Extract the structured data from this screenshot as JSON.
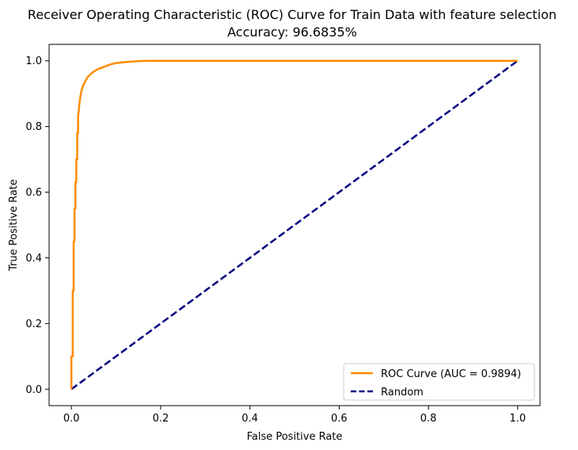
{
  "chart_data": {
    "type": "line",
    "title": "Receiver Operating Characteristic (ROC) Curve for Train Data with feature selection",
    "subtitle": "Accuracy: 96.6835%",
    "xlabel": "False Positive Rate",
    "ylabel": "True Positive Rate",
    "xlim": [
      -0.05,
      1.05
    ],
    "ylim": [
      -0.05,
      1.05
    ],
    "xticks": [
      "0.0",
      "0.2",
      "0.4",
      "0.6",
      "0.8",
      "1.0"
    ],
    "yticks": [
      "0.0",
      "0.2",
      "0.4",
      "0.6",
      "0.8",
      "1.0"
    ],
    "grid": false,
    "legend_position": "bottom-right",
    "series": [
      {
        "name": "ROC Curve (AUC = 0.9894)",
        "color": "#ff8c00",
        "style": "solid",
        "x": [
          0.0,
          0.0,
          0.003,
          0.003,
          0.005,
          0.005,
          0.007,
          0.007,
          0.009,
          0.009,
          0.011,
          0.011,
          0.013,
          0.013,
          0.015,
          0.015,
          0.018,
          0.02,
          0.022,
          0.025,
          0.028,
          0.032,
          0.036,
          0.04,
          0.045,
          0.05,
          0.06,
          0.07,
          0.08,
          0.09,
          0.1,
          0.12,
          0.14,
          0.17,
          0.2,
          0.5,
          1.0
        ],
        "y": [
          0.0,
          0.1,
          0.1,
          0.3,
          0.3,
          0.45,
          0.45,
          0.55,
          0.55,
          0.63,
          0.63,
          0.7,
          0.7,
          0.78,
          0.78,
          0.83,
          0.87,
          0.89,
          0.905,
          0.92,
          0.93,
          0.94,
          0.95,
          0.955,
          0.962,
          0.967,
          0.975,
          0.98,
          0.985,
          0.99,
          0.993,
          0.996,
          0.998,
          1.0,
          1.0,
          1.0,
          1.0
        ]
      },
      {
        "name": "Random",
        "color": "#000080",
        "style": "dashed",
        "x": [
          0,
          1
        ],
        "y": [
          0,
          1
        ]
      }
    ]
  }
}
